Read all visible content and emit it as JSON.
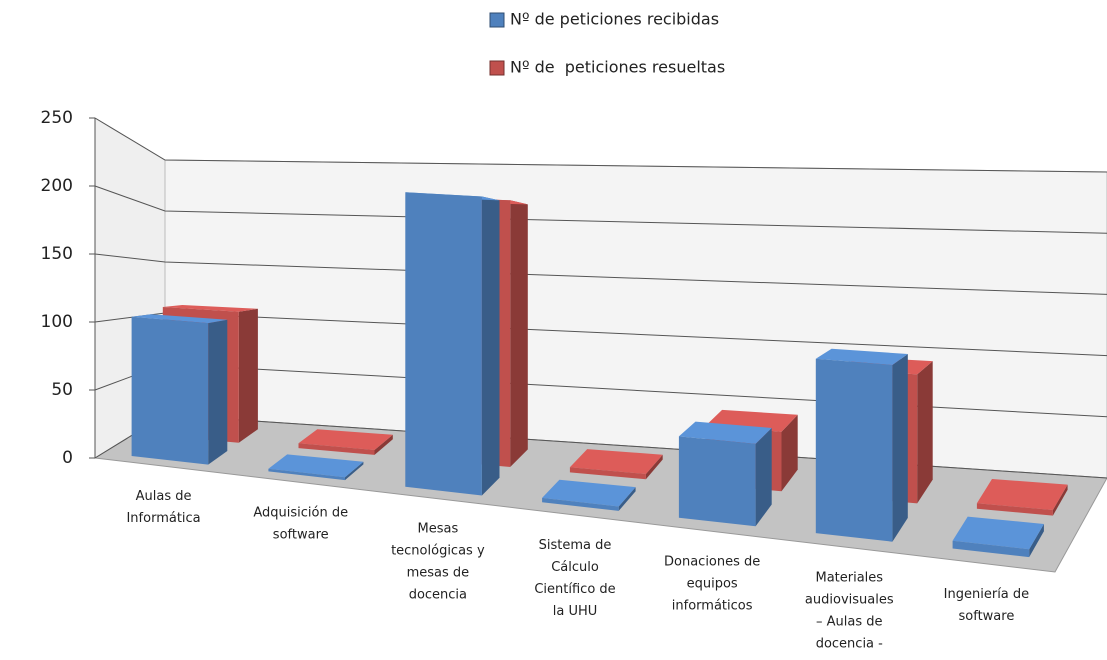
{
  "chart_data": {
    "type": "bar3d",
    "categories": [
      "Aulas de Informática",
      "Adquisición de software",
      "Mesas tecnológicas y mesas de docencia",
      "Sistema de Cálculo Científico de la UHU",
      "Donaciones de equipos informáticos",
      "Materiales audiovisuales – Aulas de docencia -",
      "Ingeniería de software"
    ],
    "series": [
      {
        "name": "Nº de peticiones recibidas",
        "color": "#4f81bd",
        "values": [
          105,
          2,
          210,
          3,
          55,
          115,
          5
        ]
      },
      {
        "name": "Nº de  peticiones resueltas",
        "color": "#c0504d",
        "values": [
          110,
          4,
          212,
          4,
          45,
          95,
          4
        ]
      }
    ],
    "ylim": [
      0,
      250
    ],
    "yticks": [
      0,
      50,
      100,
      150,
      200,
      250
    ],
    "grid": true,
    "legend": "top"
  }
}
